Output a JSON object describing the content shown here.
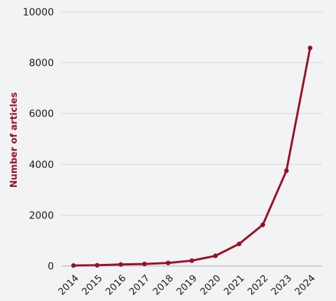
{
  "chart_data": {
    "type": "line",
    "title": "",
    "xlabel": "",
    "ylabel": "Number of articles",
    "x": [
      "2014",
      "2015",
      "2016",
      "2017",
      "2018",
      "2019",
      "2020",
      "2021",
      "2022",
      "2023",
      "2024"
    ],
    "series": [
      {
        "values": [
          20,
          30,
          60,
          80,
          120,
          210,
          400,
          870,
          1620,
          3750,
          8580
        ]
      }
    ],
    "ylim": [
      0,
      10000
    ],
    "yticks": [
      "0",
      "2000",
      "4000",
      "6000",
      "8000",
      "10000"
    ],
    "grid": true,
    "legend": "none",
    "colors": {
      "series": "#9b1024",
      "ylabel": "#9b1024",
      "background": "#f2f3f5",
      "grid": "#d3d5d9"
    }
  }
}
